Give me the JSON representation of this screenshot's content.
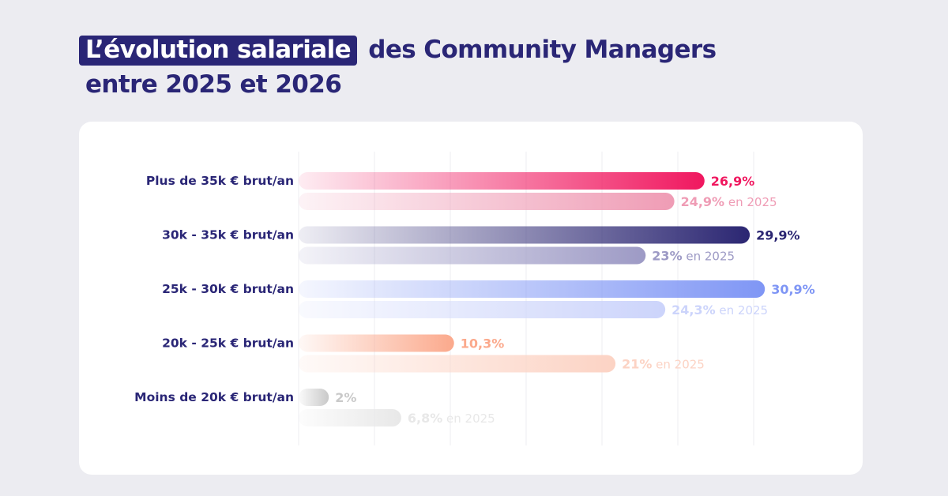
{
  "title": {
    "highlight": "L’évolution salariale",
    "rest": "des Community Managers",
    "line2": "entre 2025 et 2026"
  },
  "chart_data": {
    "type": "bar",
    "orientation": "horizontal",
    "grid": true,
    "categories": [
      "Plus de 35k € brut/an",
      "30k - 35k € brut/an",
      "25k - 30k € brut/an",
      "20k - 25k € brut/an",
      "Moins de 20k € brut/an"
    ],
    "series": [
      {
        "name": "",
        "values": [
          26.9,
          29.9,
          30.9,
          10.3,
          2
        ],
        "labels": [
          "26,9%",
          "29,9%",
          "30,9%",
          "10,3%",
          "2%"
        ]
      },
      {
        "name": "en 2025",
        "values": [
          24.9,
          23,
          24.3,
          21,
          6.8
        ],
        "labels": [
          "24,9%",
          "23%",
          "24,3%",
          "21%",
          "6,8%"
        ]
      }
    ],
    "label_suffix_2025": "en 2025",
    "colors": {
      "current": [
        "#f0175f",
        "#2b2672",
        "#7f96f5",
        "#fba98c",
        "#c9c9c9"
      ],
      "previous": [
        "#ef9cb5",
        "#9d9ac5",
        "#ccd4fb",
        "#fcd3c4",
        "#e8e8e8"
      ]
    }
  }
}
